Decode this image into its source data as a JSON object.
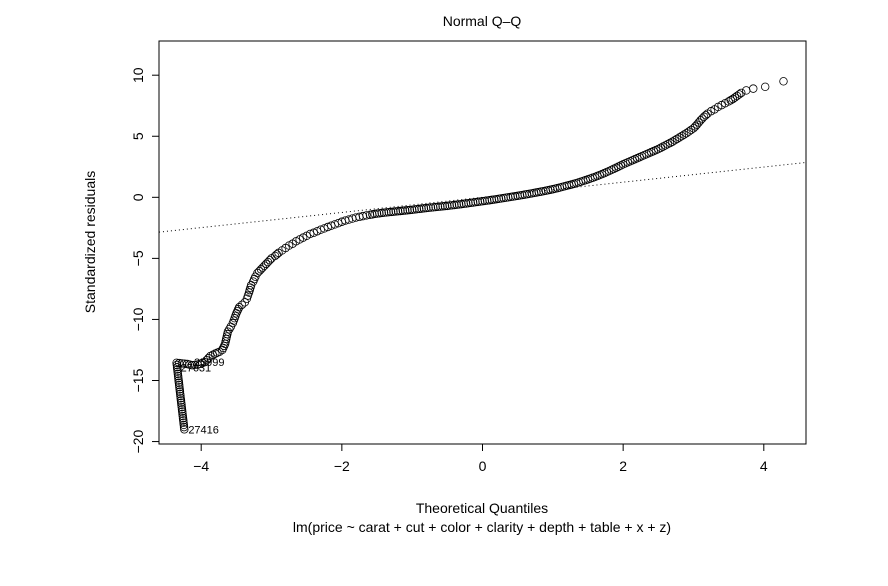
{
  "chart_data": {
    "type": "scatter",
    "title": "Normal Q–Q",
    "xlabel": "Theoretical Quantiles",
    "ylabel": "Standardized residuals",
    "subtitle": "lm(price ~ carat + cut + color + clarity + depth + table + x + z)",
    "xlim": [
      -4.6,
      4.6
    ],
    "ylim": [
      -20.2,
      12.8
    ],
    "x_ticks": [
      -4,
      -2,
      0,
      2,
      4
    ],
    "y_ticks": [
      -20,
      -15,
      -10,
      -5,
      0,
      5,
      10
    ],
    "grid": false,
    "reference_line": {
      "style": "dotted",
      "slope": 0.62,
      "intercept": 0
    },
    "points": [
      [
        -4.24,
        -19.0
      ],
      [
        -4.35,
        -13.55
      ],
      [
        -4.2,
        -13.65
      ],
      [
        -4.13,
        -13.75
      ],
      [
        -4.05,
        -13.7
      ],
      [
        -3.95,
        -13.5
      ],
      [
        -3.87,
        -13.0
      ],
      [
        -3.8,
        -12.8
      ],
      [
        -3.74,
        -12.65
      ],
      [
        -3.7,
        -12.5
      ],
      [
        -3.66,
        -12.0
      ],
      [
        -3.62,
        -11.0
      ],
      [
        -3.58,
        -10.6
      ],
      [
        -3.55,
        -10.3
      ],
      [
        -3.5,
        -9.5
      ],
      [
        -3.46,
        -9.0
      ],
      [
        -3.42,
        -8.8
      ],
      [
        -3.38,
        -8.6
      ],
      [
        -3.35,
        -8.3
      ],
      [
        -3.32,
        -7.8
      ],
      [
        -3.29,
        -7.2
      ],
      [
        -3.26,
        -6.9
      ],
      [
        -3.23,
        -6.5
      ],
      [
        -3.2,
        -6.2
      ],
      [
        -3.15,
        -5.9
      ],
      [
        -3.1,
        -5.6
      ],
      [
        -3.05,
        -5.3
      ],
      [
        -3.0,
        -5.0
      ],
      [
        -2.95,
        -4.8
      ],
      [
        -2.9,
        -4.55
      ],
      [
        -2.85,
        -4.35
      ],
      [
        -2.8,
        -4.15
      ],
      [
        -2.75,
        -3.95
      ],
      [
        -2.7,
        -3.8
      ],
      [
        -2.65,
        -3.6
      ],
      [
        -2.6,
        -3.45
      ],
      [
        -2.55,
        -3.3
      ],
      [
        -2.5,
        -3.15
      ],
      [
        -2.45,
        -3.0
      ],
      [
        -2.4,
        -2.9
      ],
      [
        -2.35,
        -2.78
      ],
      [
        -2.3,
        -2.65
      ],
      [
        -2.25,
        -2.55
      ],
      [
        -2.2,
        -2.43
      ],
      [
        -2.15,
        -2.32
      ],
      [
        -2.1,
        -2.22
      ],
      [
        -2.05,
        -2.12
      ],
      [
        -2.0,
        -2.0
      ],
      [
        -1.95,
        -1.9
      ],
      [
        -1.9,
        -1.82
      ],
      [
        -1.85,
        -1.74
      ],
      [
        -1.8,
        -1.66
      ],
      [
        -1.75,
        -1.6
      ],
      [
        -1.7,
        -1.54
      ],
      [
        -1.65,
        -1.48
      ],
      [
        -1.6,
        -1.43
      ],
      [
        -1.5,
        -1.33
      ],
      [
        -1.4,
        -1.26
      ],
      [
        -1.3,
        -1.2
      ],
      [
        -1.2,
        -1.14
      ],
      [
        -1.1,
        -1.08
      ],
      [
        -1.0,
        -1.02
      ],
      [
        -0.9,
        -0.95
      ],
      [
        -0.8,
        -0.88
      ],
      [
        -0.7,
        -0.82
      ],
      [
        -0.6,
        -0.76
      ],
      [
        -0.5,
        -0.7
      ],
      [
        -0.4,
        -0.63
      ],
      [
        -0.3,
        -0.56
      ],
      [
        -0.2,
        -0.48
      ],
      [
        -0.1,
        -0.4
      ],
      [
        0.0,
        -0.32
      ],
      [
        0.1,
        -0.24
      ],
      [
        0.2,
        -0.15
      ],
      [
        0.3,
        -0.06
      ],
      [
        0.4,
        0.03
      ],
      [
        0.5,
        0.12
      ],
      [
        0.6,
        0.22
      ],
      [
        0.7,
        0.32
      ],
      [
        0.8,
        0.43
      ],
      [
        0.9,
        0.54
      ],
      [
        1.0,
        0.66
      ],
      [
        1.1,
        0.8
      ],
      [
        1.2,
        0.95
      ],
      [
        1.3,
        1.1
      ],
      [
        1.4,
        1.28
      ],
      [
        1.5,
        1.47
      ],
      [
        1.6,
        1.67
      ],
      [
        1.7,
        1.9
      ],
      [
        1.8,
        2.15
      ],
      [
        1.9,
        2.42
      ],
      [
        2.0,
        2.7
      ],
      [
        2.1,
        2.95
      ],
      [
        2.2,
        3.2
      ],
      [
        2.3,
        3.45
      ],
      [
        2.4,
        3.7
      ],
      [
        2.5,
        3.95
      ],
      [
        2.6,
        4.25
      ],
      [
        2.7,
        4.55
      ],
      [
        2.8,
        4.9
      ],
      [
        2.9,
        5.25
      ],
      [
        3.0,
        5.65
      ],
      [
        3.05,
        5.95
      ],
      [
        3.1,
        6.3
      ],
      [
        3.15,
        6.6
      ],
      [
        3.2,
        6.85
      ],
      [
        3.25,
        7.05
      ],
      [
        3.3,
        7.2
      ],
      [
        3.35,
        7.4
      ],
      [
        3.4,
        7.55
      ],
      [
        3.45,
        7.7
      ],
      [
        3.5,
        7.85
      ],
      [
        3.56,
        8.05
      ],
      [
        3.62,
        8.3
      ],
      [
        3.68,
        8.55
      ],
      [
        3.75,
        8.75
      ],
      [
        3.85,
        8.9
      ],
      [
        4.02,
        9.05
      ],
      [
        4.28,
        9.5
      ]
    ],
    "annotations": [
      {
        "label": "27416",
        "x": -4.24,
        "y": -19.0
      },
      {
        "label": "25999",
        "x": -4.16,
        "y": -13.5
      },
      {
        "label": "27631",
        "x": -4.35,
        "y": -13.95
      }
    ]
  }
}
